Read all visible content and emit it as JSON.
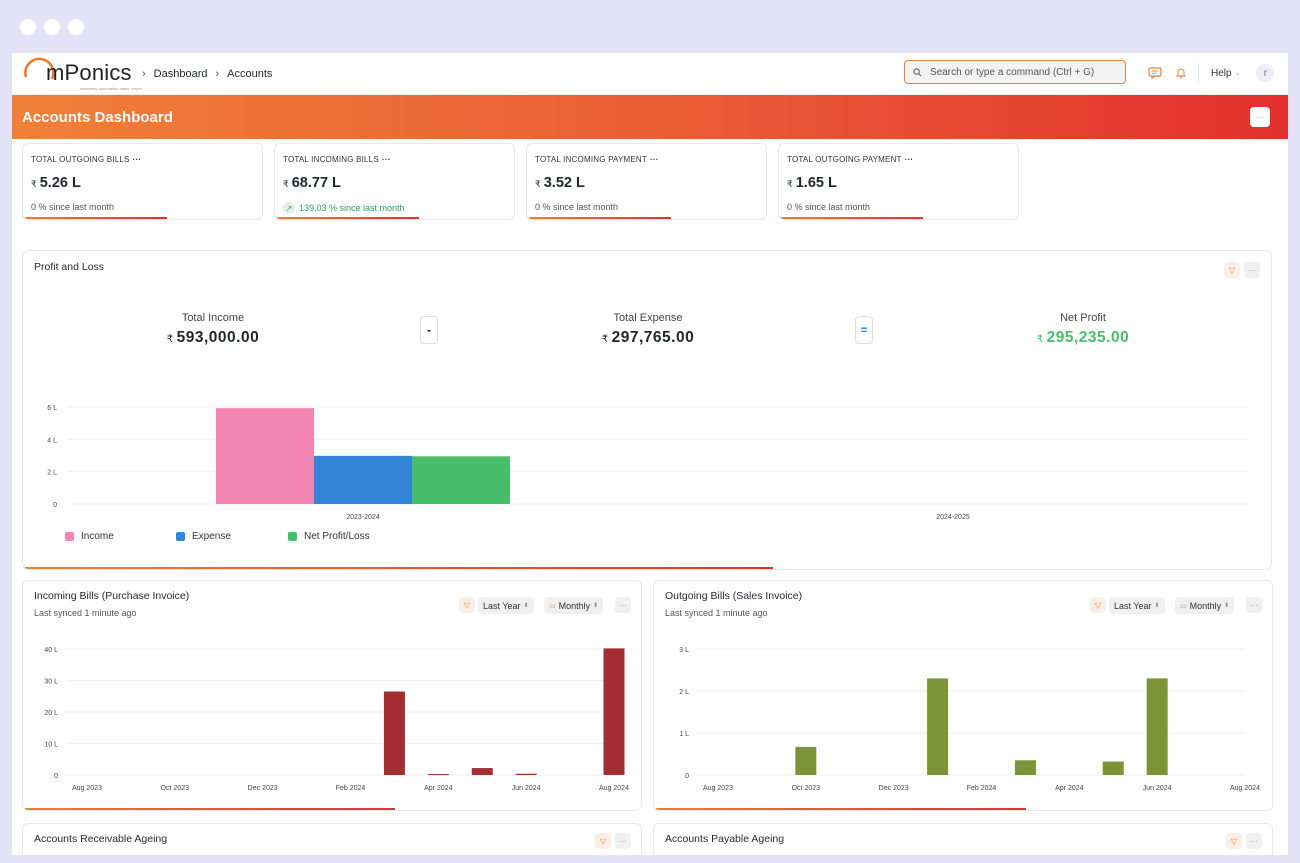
{
  "app": {
    "logo_text": "mPonics",
    "logo_tagline": "marketing automation made simple"
  },
  "breadcrumb": [
    "Dashboard",
    "Accounts"
  ],
  "search": {
    "placeholder": "Search or type a command (Ctrl + G)"
  },
  "nav": {
    "help": "Help",
    "avatar": "r"
  },
  "page": {
    "title": "Accounts Dashboard"
  },
  "kpis": [
    {
      "label": "TOTAL OUTGOING BILLS",
      "currency": "₹",
      "value": "5.26 L",
      "change": "0 % since last month",
      "trend": "flat"
    },
    {
      "label": "TOTAL INCOMING BILLS",
      "currency": "₹",
      "value": "68.77 L",
      "change": "139.03 % since last month",
      "trend": "up"
    },
    {
      "label": "TOTAL INCOMING PAYMENT",
      "currency": "₹",
      "value": "3.52 L",
      "change": "0 % since last month",
      "trend": "flat"
    },
    {
      "label": "TOTAL OUTGOING PAYMENT",
      "currency": "₹",
      "value": "1.65 L",
      "change": "0 % since last month",
      "trend": "flat"
    }
  ],
  "profit_loss": {
    "title": "Profit and Loss",
    "total_income_label": "Total Income",
    "total_income": "593,000.00",
    "minus": "-",
    "total_expense_label": "Total Expense",
    "total_expense": "297,765.00",
    "equals": "=",
    "net_profit_label": "Net Profit",
    "net_profit": "295,235.00",
    "currency": "₹"
  },
  "incoming_bills": {
    "title": "Incoming Bills (Purchase Invoice)",
    "synced": "Last synced 1 minute ago",
    "range": "Last Year",
    "period": "Monthly"
  },
  "outgoing_bills": {
    "title": "Outgoing Bills (Sales Invoice)",
    "synced": "Last synced 1 minute ago",
    "range": "Last Year",
    "period": "Monthly"
  },
  "receivable_ageing": {
    "title": "Accounts Receivable Ageing"
  },
  "payable_ageing": {
    "title": "Accounts Payable Ageing"
  },
  "colors": {
    "accent": "#e8813a",
    "income": "#f285b3",
    "expense": "#3384d7",
    "net": "#48be6c",
    "incoming_bar": "#a42d32",
    "outgoing_bar": "#7b9437",
    "net_profit_text": "#48be6c"
  },
  "chart_data": [
    {
      "type": "bar",
      "title": "Profit and Loss",
      "categories": [
        "2023-2024",
        "2024-2025"
      ],
      "series": [
        {
          "name": "Income",
          "values": [
            5.93,
            0
          ]
        },
        {
          "name": "Expense",
          "values": [
            2.98,
            0
          ]
        },
        {
          "name": "Net Profit/Loss",
          "values": [
            2.95,
            0
          ]
        }
      ],
      "y_ticks": [
        "0",
        "2 L",
        "4 L",
        "6 L"
      ],
      "ylim": [
        0,
        6
      ],
      "legend_position": "bottom-left",
      "grid": true
    },
    {
      "type": "bar",
      "title": "Incoming Bills (Purchase Invoice)",
      "categories": [
        "Aug 2023",
        "Sep 2023",
        "Oct 2023",
        "Nov 2023",
        "Dec 2023",
        "Jan 2024",
        "Feb 2024",
        "Mar 2024",
        "Apr 2024",
        "May 2024",
        "Jun 2024",
        "Jul 2024",
        "Aug 2024"
      ],
      "x_tick_labels": [
        "Aug 2023",
        "Oct 2023",
        "Dec 2023",
        "Feb 2024",
        "Apr 2024",
        "Jun 2024",
        "Aug 2024"
      ],
      "values": [
        0,
        0,
        0,
        0,
        0,
        0,
        0,
        26.5,
        0.3,
        2.2,
        0.4,
        0,
        40.2
      ],
      "y_ticks": [
        "0",
        "10 L",
        "20 L",
        "30 L",
        "40 L"
      ],
      "ylim": [
        0,
        40
      ],
      "grid": true
    },
    {
      "type": "bar",
      "title": "Outgoing Bills (Sales Invoice)",
      "categories": [
        "Aug 2023",
        "Sep 2023",
        "Oct 2023",
        "Nov 2023",
        "Dec 2023",
        "Jan 2024",
        "Feb 2024",
        "Mar 2024",
        "Apr 2024",
        "May 2024",
        "Jun 2024",
        "Jul 2024",
        "Aug 2024"
      ],
      "x_tick_labels": [
        "Aug 2023",
        "Oct 2023",
        "Dec 2023",
        "Feb 2024",
        "Apr 2024",
        "Jun 2024",
        "Aug 2024"
      ],
      "values": [
        0,
        0,
        0.67,
        0,
        0,
        2.3,
        0,
        0.35,
        0,
        0.32,
        2.3,
        0,
        0
      ],
      "y_ticks": [
        "0",
        "1 L",
        "2 L",
        "3 L"
      ],
      "ylim": [
        0,
        3
      ],
      "grid": true
    }
  ]
}
